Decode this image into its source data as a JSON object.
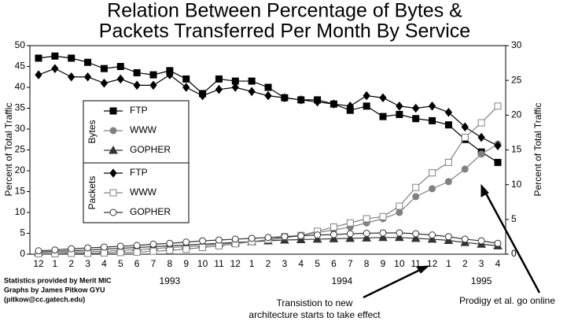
{
  "chart_data": {
    "type": "line",
    "title": [
      "Relation Between Percentage of Bytes &",
      "Packets Transferred Per Month By Service"
    ],
    "y_label": "Percent of Total Traffic",
    "y2_label": "Percent of Total Traffic",
    "categories": [
      "12",
      "1",
      "2",
      "3",
      "4",
      "5",
      "6",
      "7",
      "8",
      "9",
      "10",
      "11",
      "12",
      "1",
      "2",
      "3",
      "4",
      "5",
      "6",
      "7",
      "8",
      "9",
      "10",
      "11",
      "12",
      "1",
      "2",
      "3",
      "4"
    ],
    "years": [
      "1993",
      "1994",
      "1995"
    ],
    "ylim": [
      0,
      50
    ],
    "yticks": [
      0,
      5,
      10,
      15,
      20,
      25,
      30,
      35,
      40,
      45,
      50
    ],
    "y2lim": [
      0,
      30
    ],
    "y2ticks": [
      0,
      5,
      10,
      15,
      20,
      25,
      30
    ],
    "series": [
      {
        "name": "FTP",
        "group": "Bytes",
        "color": "#000000",
        "marker": "square",
        "filled": true,
        "values": [
          47,
          47.5,
          47,
          46,
          44.5,
          45,
          43.5,
          43,
          44,
          42,
          38.5,
          42,
          41.5,
          41.5,
          40,
          37.5,
          37,
          37,
          36,
          34.5,
          35.5,
          33,
          33.5,
          32.5,
          32,
          31,
          27.5,
          24.5,
          22
        ]
      },
      {
        "name": "WWW",
        "group": "Bytes",
        "color": "#808080",
        "marker": "circle",
        "filled": true,
        "values": [
          0.2,
          0.3,
          0.5,
          0.6,
          0.7,
          0.9,
          1.1,
          1.3,
          1.6,
          1.8,
          2,
          2.4,
          2.7,
          3,
          3.4,
          3.9,
          4.5,
          5.2,
          5.8,
          6.5,
          7.5,
          8.5,
          10,
          13.8,
          15.7,
          17.4,
          20.4,
          24,
          26.4
        ]
      },
      {
        "name": "GOPHER",
        "group": "Bytes",
        "color": "#333333",
        "marker": "triangle",
        "filled": true,
        "values": [
          0.5,
          0.7,
          0.8,
          1,
          1.2,
          1.4,
          1.6,
          1.8,
          2,
          2.2,
          2.4,
          2.6,
          2.8,
          3,
          3.2,
          3.4,
          3.5,
          3.6,
          3.7,
          3.8,
          3.9,
          4,
          4,
          3.8,
          3.6,
          3.3,
          2.8,
          2.4,
          2
        ]
      },
      {
        "name": "FTP",
        "group": "Packets",
        "color": "#000000",
        "marker": "diamond",
        "filled": true,
        "values": [
          43,
          44.5,
          42.5,
          42.5,
          41,
          42,
          40.5,
          40.5,
          43,
          40,
          38,
          39.5,
          40,
          39,
          38,
          37.5,
          37,
          36.5,
          36,
          35.5,
          38,
          37.5,
          35.5,
          35,
          35.5,
          34,
          30.5,
          28,
          26
        ]
      },
      {
        "name": "WWW",
        "group": "Packets",
        "color": "#808080",
        "marker": "square",
        "filled": false,
        "values": [
          0.1,
          0.1,
          0.2,
          0.2,
          0.3,
          0.4,
          0.5,
          0.7,
          0.9,
          1.2,
          1.6,
          2,
          2.5,
          3,
          3.5,
          4.2,
          4.5,
          5.5,
          6.5,
          7.5,
          8.5,
          9,
          11.5,
          16,
          19.5,
          22,
          28,
          31.5,
          35.5
        ]
      },
      {
        "name": "GOPHER",
        "group": "Packets",
        "color": "#333333",
        "marker": "circle",
        "filled": false,
        "values": [
          0.8,
          1,
          1.3,
          1.5,
          1.7,
          1.9,
          2.1,
          2.4,
          2.6,
          2.9,
          3.2,
          3.4,
          3.6,
          3.8,
          4,
          4.2,
          4.4,
          4.6,
          4.7,
          4.9,
          5,
          5.1,
          5.1,
          4.9,
          4.6,
          4.2,
          3.6,
          3.2,
          2.6
        ]
      }
    ],
    "annotations": [
      "Statistics provided by Merit MIC",
      "Graphs by James  Pitkow  GYU",
      "(pitkow@cc.gatech.edu)",
      "Transistion to new",
      "architecture starts to take effect",
      "Prodigy et al. go online"
    ]
  }
}
